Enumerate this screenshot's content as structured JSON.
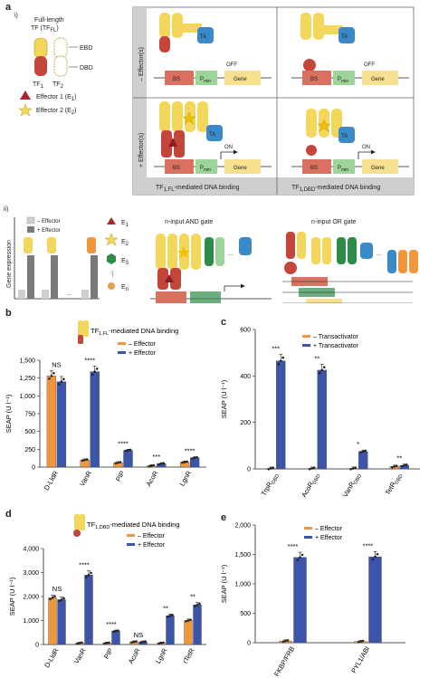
{
  "panel_a": {
    "letter": "a",
    "sub_i": "i)",
    "sub_ii": "ii)",
    "legend": {
      "tf_line1": "Full-length",
      "tf_line2": "TF (TF",
      "tf_sub": "FL",
      "tf_close": ")",
      "ebd": "EBD",
      "dbd": "DBD",
      "tf1": "TF",
      "tf1_sub": "1",
      "tf2": "TF",
      "tf2_sub": "2",
      "effector1": "Effector 1 (E",
      "effector1_sub": "1",
      "effector2": "Effector 2 (E",
      "effector2_sub": "2",
      "close": ")"
    },
    "rows": {
      "minus": "– Effector(s)",
      "plus": "+ Effector(s)"
    },
    "col_labels": {
      "fl_pre": "TF",
      "fl_sub": "1,FL",
      "fl_post": "-mediated DNA binding",
      "ldbd_pre": "TF",
      "ldbd_sub": "1,DBD",
      "ldbd_post": "-mediated DNA binding"
    },
    "construct": {
      "bs": "BS",
      "pmin": "P",
      "pmin_sub": "min",
      "gene": "Gene",
      "ta": "TA",
      "off": "OFF",
      "on": "ON"
    },
    "gene_expression": {
      "ylabel": "Gene expression",
      "minus": "– Effector",
      "plus": "+ Effector",
      "e1": "E",
      "e1_sub": "1",
      "e2": "E",
      "e2_sub": "2",
      "e3": "E",
      "e3_sub": "3",
      "en": "E",
      "en_sub": "n",
      "dots": "..."
    },
    "and_gate": "n-input AND gate",
    "or_gate": "n-input OR gate"
  },
  "colors": {
    "orange": "#f0963c",
    "blue": "#3d55a8",
    "red": "#c4453a",
    "yellow": "#f2d75c",
    "green": "#2e8b4a",
    "light_green": "#9cd49a",
    "gene_yellow": "#f7e08f",
    "bs_red": "#d97060",
    "ta_blue": "#3a89c9",
    "grey_dark": "#7a7a7a",
    "grey_light": "#cfcfcf"
  },
  "chart_data": [
    {
      "panel": "b",
      "type": "bar",
      "title_pre": "TF",
      "title_sub": "1,FL",
      "title_post": "-mediated DNA binding",
      "ylabel": "SEAP (U l⁻¹)",
      "ylim": [
        0,
        1500
      ],
      "yticks": [
        0,
        250,
        500,
        750,
        1000,
        1250,
        1500
      ],
      "ytick_labels": [
        "0",
        "250",
        "500",
        "750",
        "1,000",
        "1,250",
        "1,500"
      ],
      "categories": [
        "D-LldR",
        "VanR",
        "PIP",
        "AcoR",
        "LgnR"
      ],
      "series": [
        {
          "name": "– Effector",
          "values": [
            1280,
            100,
            62,
            18,
            70
          ]
        },
        {
          "name": "+ Effector",
          "values": [
            1200,
            1340,
            235,
            47,
            130
          ]
        }
      ],
      "significance": [
        "NS",
        "****",
        "****",
        "***",
        "****"
      ],
      "legend": "top-right"
    },
    {
      "panel": "c",
      "type": "bar",
      "ylabel": "SEAP (U l⁻¹)",
      "ylim": [
        0,
        600
      ],
      "yticks": [
        0,
        200,
        400,
        600
      ],
      "ytick_labels": [
        "0",
        "200",
        "400",
        "600"
      ],
      "categories": [
        "TrpR_DBD",
        "AcoR_DBD",
        "VanR_DBD",
        "TetR_DBD"
      ],
      "category_labels": [
        [
          "TrpR",
          "DBD"
        ],
        [
          "AcoR",
          "DBD"
        ],
        [
          "VanR",
          "DBD"
        ],
        [
          "TetR",
          "DBD"
        ]
      ],
      "series": [
        {
          "name": "– Transactivator",
          "values": [
            2,
            2,
            2,
            10
          ]
        },
        {
          "name": "+ Transactivator",
          "values": [
            465,
            425,
            75,
            15
          ]
        }
      ],
      "significance": [
        "***",
        "**",
        "*",
        "**"
      ],
      "legend": "top-right"
    },
    {
      "panel": "d",
      "type": "bar",
      "title_pre": "TF",
      "title_sub": "1,DBD",
      "title_post": "-mediated DNA binding",
      "ylabel": "SEAP (U l⁻¹)",
      "ylim": [
        0,
        4000
      ],
      "yticks": [
        0,
        1000,
        2000,
        3000,
        4000
      ],
      "ytick_labels": [
        "0",
        "1,000",
        "2,000",
        "3,000",
        "4,000"
      ],
      "categories": [
        "D-LldR",
        "VanR",
        "PIP",
        "AcoR",
        "LgnR",
        "rTetR"
      ],
      "series": [
        {
          "name": "– Effector",
          "values": [
            1950,
            60,
            60,
            110,
            60,
            1000
          ]
        },
        {
          "name": "+ Effector",
          "values": [
            1870,
            2900,
            560,
            110,
            1200,
            1650
          ]
        }
      ],
      "significance": [
        "NS",
        "****",
        "****",
        "NS",
        "**",
        "**"
      ],
      "legend": "top-right"
    },
    {
      "panel": "e",
      "type": "bar",
      "ylabel": "SEAP (U l⁻¹)",
      "ylim": [
        0,
        2000
      ],
      "yticks": [
        0,
        500,
        1000,
        1500,
        2000
      ],
      "ytick_labels": [
        "0",
        "500",
        "1,000",
        "1,500",
        "2,000"
      ],
      "categories": [
        "FKBP/FRB",
        "PYL1/ABI"
      ],
      "series": [
        {
          "name": "– Effector",
          "values": [
            30,
            20
          ]
        },
        {
          "name": "+ Effector",
          "values": [
            1450,
            1460
          ]
        }
      ],
      "significance": [
        "****",
        "****"
      ],
      "legend": "top-right"
    }
  ]
}
